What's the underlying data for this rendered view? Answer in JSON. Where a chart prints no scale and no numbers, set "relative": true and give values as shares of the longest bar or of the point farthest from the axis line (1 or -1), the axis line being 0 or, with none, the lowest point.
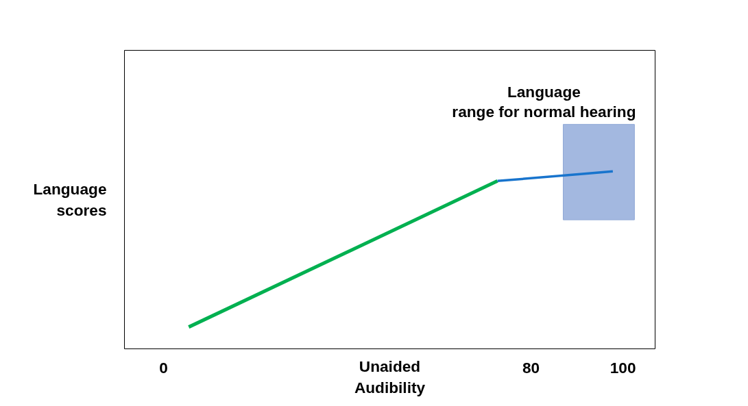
{
  "chart_data": {
    "type": "line",
    "xlabel": "Unaided Audibility",
    "ylabel": "Language scores",
    "xlim": [
      -8.5,
      107
    ],
    "xticks": [
      0,
      80,
      100
    ],
    "relative": true,
    "grid": false,
    "tick_labels": "x",
    "series": [
      {
        "color": "#00b050",
        "x": [
          5.5,
          72.7
        ],
        "values": [
          0.123,
          0.946
        ]
      },
      {
        "color": "#1874cd",
        "x": [
          72.7,
          97.8
        ],
        "values": [
          0.946,
          1.0
        ]
      },
      {
        "color": "#a3b8e0",
        "x": [
          87,
          102.5
        ],
        "values": [
          null,
          null
        ],
        "lower": [
          0.727,
          0.727
        ],
        "upper": [
          1.265,
          1.265
        ]
      }
    ],
    "annotations": [
      {
        "text": "Language range for normal hearing",
        "x": 94.75,
        "y": 1.265
      }
    ]
  }
}
